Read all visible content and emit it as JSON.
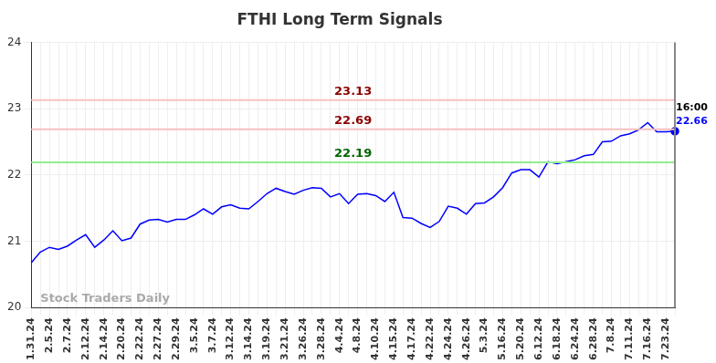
{
  "chart_data": {
    "type": "line",
    "title": "FTHI Long Term Signals",
    "categories": [
      "1.31.24",
      null,
      "2.5.24",
      null,
      "2.7.24",
      null,
      "2.12.24",
      null,
      "2.14.24",
      null,
      "2.20.24",
      null,
      "2.22.24",
      null,
      "2.27.24",
      null,
      "2.29.24",
      null,
      "3.5.24",
      null,
      "3.7.24",
      null,
      "3.12.24",
      null,
      "3.14.24",
      null,
      "3.19.24",
      null,
      "3.21.24",
      null,
      "3.26.24",
      null,
      "3.28.24",
      null,
      "4.4.24",
      null,
      "4.8.24",
      null,
      "4.10.24",
      null,
      "4.15.24",
      null,
      "4.17.24",
      null,
      "4.22.24",
      null,
      "4.24.24",
      null,
      "4.26.24",
      null,
      "5.3.24",
      null,
      "5.16.24",
      null,
      "5.20.24",
      null,
      "6.12.24",
      null,
      "6.18.24",
      null,
      "6.24.24",
      null,
      "6.28.24",
      null,
      "7.8.24",
      null,
      "7.11.24",
      null,
      "7.16.24",
      null,
      "7.23.24",
      null
    ],
    "values": [
      20.68,
      20.84,
      20.91,
      20.88,
      20.93,
      21.02,
      21.1,
      20.91,
      21.02,
      21.16,
      21.01,
      21.05,
      21.26,
      21.32,
      21.33,
      21.29,
      21.33,
      21.33,
      21.4,
      21.49,
      21.41,
      21.52,
      21.55,
      21.5,
      21.49,
      21.6,
      21.72,
      21.8,
      21.75,
      21.71,
      21.77,
      21.81,
      21.8,
      21.67,
      21.72,
      21.57,
      21.71,
      21.72,
      21.69,
      21.6,
      21.74,
      21.36,
      21.35,
      21.27,
      21.21,
      21.3,
      21.53,
      21.5,
      21.41,
      21.57,
      21.58,
      21.67,
      21.81,
      22.03,
      22.08,
      22.08,
      21.97,
      22.2,
      22.17,
      22.2,
      22.23,
      22.29,
      22.31,
      22.5,
      22.51,
      22.59,
      22.62,
      22.68,
      22.79,
      22.65,
      22.65,
      22.66
    ],
    "color": "#0000ff",
    "ylim": [
      20,
      24
    ],
    "yticks": [
      20,
      21,
      22,
      23,
      24
    ],
    "grid": true,
    "reference_lines": [
      {
        "value": 23.13,
        "color": "#f7c0c0"
      },
      {
        "value": 22.69,
        "color": "#f7c0c0"
      },
      {
        "value": 22.19,
        "color": "#90ee90"
      }
    ],
    "end_label": "16:00",
    "watermark": "Stock Traders Daily"
  }
}
